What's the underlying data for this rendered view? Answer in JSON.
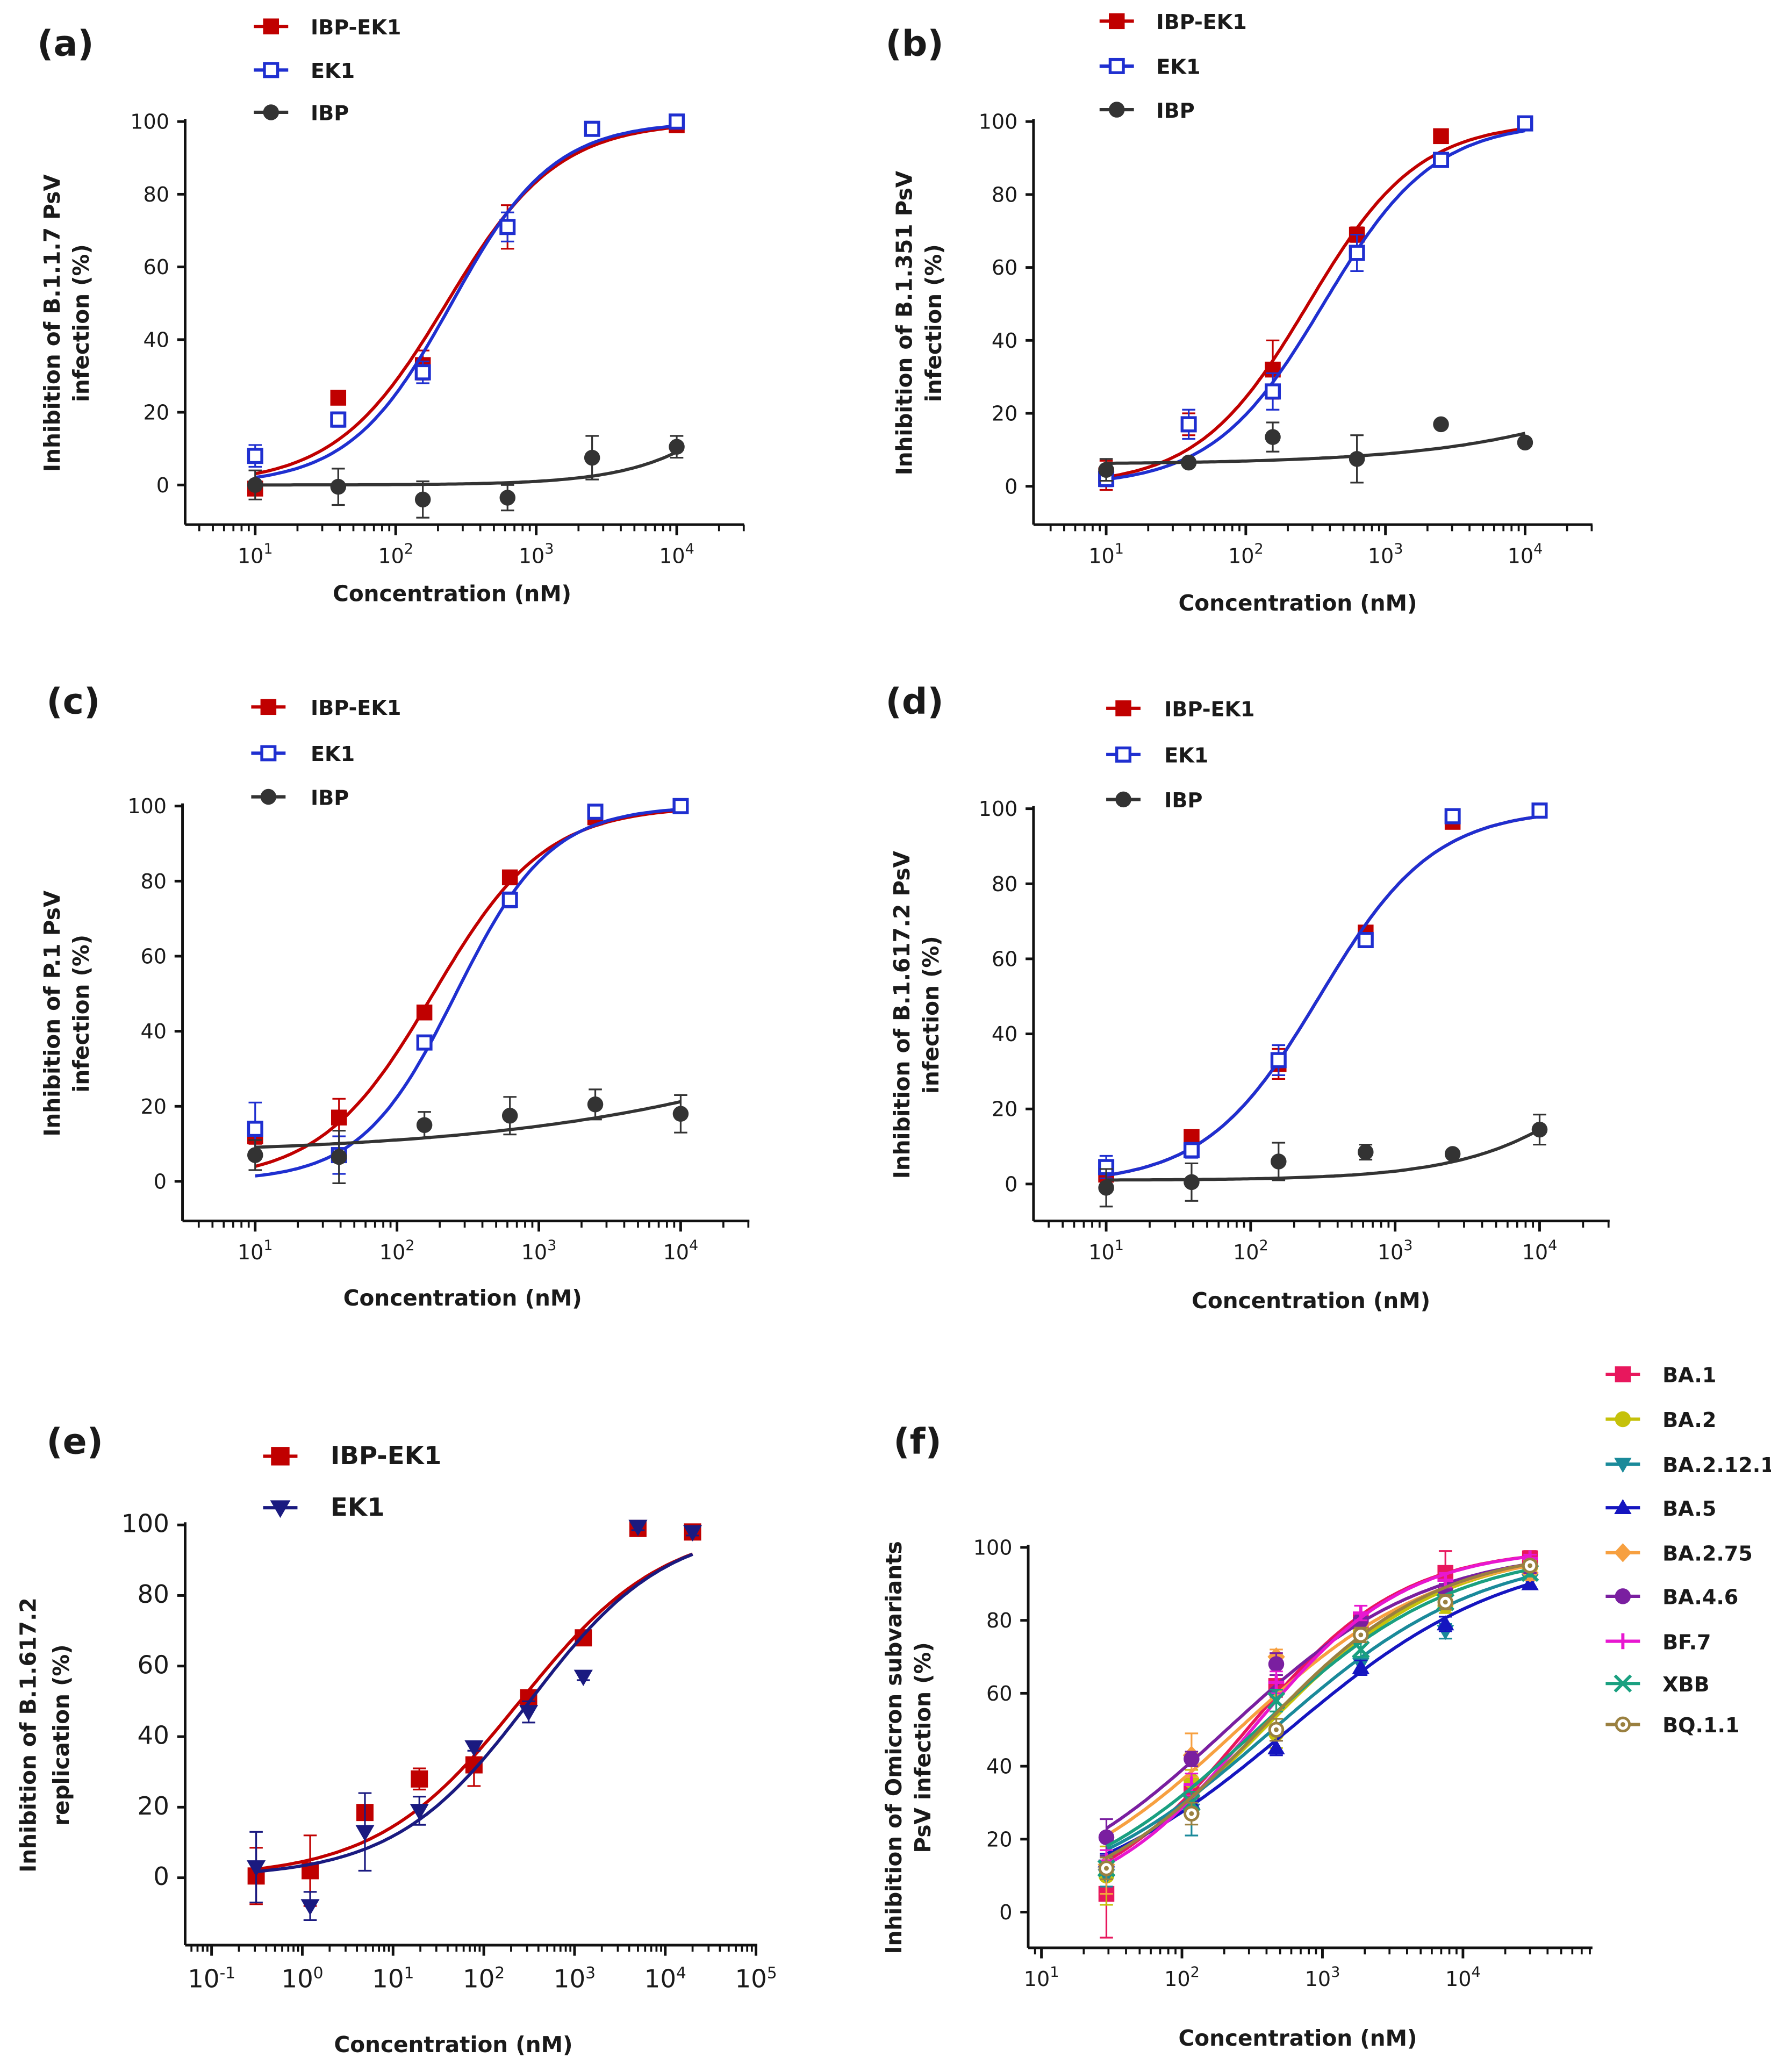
{
  "chart_data": [
    {
      "panel_label": "(a)",
      "type": "scatter",
      "xscale": "log",
      "xbase": "10",
      "xticks": [
        "1",
        "2",
        "3",
        "4"
      ],
      "xlabel": "Concentration (nM)",
      "ylabel": [
        "Inhibition of B.1.1.7 PsV",
        "infection (%)"
      ],
      "yticks": [
        "0",
        "20",
        "40",
        "60",
        "80",
        "100"
      ],
      "ylim": [
        -10,
        100
      ],
      "grid": false,
      "legend": "top-left",
      "x": [
        10,
        39,
        156,
        625,
        2500,
        10000
      ],
      "series": [
        {
          "name": "IBP-EK1",
          "color": "#c00000",
          "marker": "square",
          "values": [
            -1,
            24,
            33,
            71,
            98,
            99
          ],
          "err": [
            1,
            1,
            4,
            6,
            1,
            1
          ],
          "fit": {
            "bottom": 0,
            "top": 100,
            "ic50": 230,
            "hill": 1.1
          }
        },
        {
          "name": "EK1",
          "color": "#1f2fd0",
          "marker": "open-square",
          "values": [
            8,
            18,
            31,
            71,
            98,
            100
          ],
          "err": [
            3,
            2,
            3,
            4,
            1,
            1
          ],
          "fit": {
            "bottom": 0,
            "top": 100,
            "ic50": 250,
            "hill": 1.2
          }
        },
        {
          "name": "IBP",
          "color": "#333333",
          "marker": "circle",
          "values": [
            0,
            -0.5,
            -4,
            -3.5,
            7.5,
            10.5
          ],
          "err": [
            4,
            5,
            5,
            3.5,
            6,
            3
          ],
          "fit": {
            "bottom": 0,
            "top": 100,
            "ic50": 100000,
            "hill": 1
          }
        }
      ]
    },
    {
      "panel_label": "(b)",
      "type": "scatter",
      "xscale": "log",
      "xbase": "10",
      "xticks": [
        "1",
        "2",
        "3",
        "4"
      ],
      "xlabel": "Concentration (nM)",
      "ylabel": [
        "Inhibition of B.1.351 PsV",
        "infection (%)"
      ],
      "yticks": [
        "0",
        "20",
        "40",
        "60",
        "80",
        "100"
      ],
      "ylim": [
        -10,
        100
      ],
      "grid": false,
      "legend": "top-left",
      "x": [
        10,
        39,
        156,
        625,
        2500,
        10000
      ],
      "series": [
        {
          "name": "IBP-EK1",
          "color": "#c00000",
          "marker": "square",
          "values": [
            3,
            17,
            32,
            69,
            96,
            99.5
          ],
          "err": [
            4,
            3,
            8,
            2,
            1,
            1
          ],
          "fit": {
            "bottom": 0,
            "top": 100,
            "ic50": 280,
            "hill": 1.1
          }
        },
        {
          "name": "EK1",
          "color": "#1f2fd0",
          "marker": "open-square",
          "values": [
            2,
            17,
            26,
            64,
            89.5,
            99.5
          ],
          "err": [
            2,
            4,
            5,
            5,
            1,
            1
          ],
          "fit": {
            "bottom": 0,
            "top": 100,
            "ic50": 360,
            "hill": 1.1
          }
        },
        {
          "name": "IBP",
          "color": "#333333",
          "marker": "circle",
          "values": [
            4.5,
            6.5,
            13.5,
            7.5,
            17,
            12
          ],
          "err": [
            3,
            1,
            4,
            6.5,
            1,
            1
          ],
          "fit": {
            "bottom": 6,
            "top": 100,
            "ic50": 1000000,
            "hill": 0.5
          }
        }
      ]
    },
    {
      "panel_label": "(c)",
      "type": "scatter",
      "xscale": "log",
      "xbase": "10",
      "xticks": [
        "1",
        "2",
        "3",
        "4"
      ],
      "xlabel": "Concentration (nM)",
      "ylabel": [
        "Inhibition of P.1 PsV",
        "infection (%)"
      ],
      "yticks": [
        "0",
        "20",
        "40",
        "60",
        "80",
        "100"
      ],
      "ylim": [
        -10,
        100
      ],
      "grid": false,
      "legend": "top-left",
      "x": [
        10,
        39,
        156,
        625,
        2500,
        10000
      ],
      "series": [
        {
          "name": "IBP-EK1",
          "color": "#c00000",
          "marker": "square",
          "values": [
            12,
            17,
            45,
            81,
            97,
            100
          ],
          "err": [
            2,
            5,
            1,
            1,
            1,
            1
          ],
          "fit": {
            "bottom": 0,
            "top": 100,
            "ic50": 180,
            "hill": 1.1
          }
        },
        {
          "name": "EK1",
          "color": "#1f2fd0",
          "marker": "open-square",
          "values": [
            14,
            7,
            37,
            75,
            98.5,
            100
          ],
          "err": [
            7,
            5,
            1,
            2,
            1,
            1
          ],
          "fit": {
            "bottom": 0,
            "top": 100,
            "ic50": 260,
            "hill": 1.3
          }
        },
        {
          "name": "IBP",
          "color": "#333333",
          "marker": "circle",
          "values": [
            7,
            6.5,
            15,
            17.5,
            20.5,
            18
          ],
          "err": [
            4,
            7,
            3.5,
            5,
            4,
            5
          ],
          "fit": {
            "bottom": 7,
            "top": 100,
            "ic50": 3000000,
            "hill": 0.3
          }
        }
      ]
    },
    {
      "panel_label": "(d)",
      "type": "scatter",
      "xscale": "log",
      "xbase": "10",
      "xticks": [
        "1",
        "2",
        "3",
        "4"
      ],
      "xlabel": "Concentration (nM)",
      "ylabel": [
        "Inhibition of B.1.617.2 PsV",
        "infection (%)"
      ],
      "yticks": [
        "0",
        "20",
        "40",
        "60",
        "80",
        "100"
      ],
      "ylim": [
        -10,
        100
      ],
      "grid": false,
      "legend": "top-left",
      "x": [
        10,
        39,
        156,
        625,
        2500,
        10000
      ],
      "series": [
        {
          "name": "IBP-EK1",
          "color": "#c00000",
          "marker": "square",
          "values": [
            2.5,
            12.5,
            32,
            67,
            96.5,
            99.5
          ],
          "err": [
            1,
            1,
            4,
            1,
            1,
            1
          ],
          "fit": {
            "bottom": 0,
            "top": 100,
            "ic50": 300,
            "hill": 1.1
          }
        },
        {
          "name": "EK1",
          "color": "#1f2fd0",
          "marker": "open-square",
          "values": [
            4.5,
            9,
            33,
            65,
            98,
            99.5
          ],
          "err": [
            3,
            2,
            4,
            1,
            1,
            1
          ],
          "fit": {
            "bottom": 0,
            "top": 100,
            "ic50": 300,
            "hill": 1.1
          }
        },
        {
          "name": "IBP",
          "color": "#333333",
          "marker": "circle",
          "values": [
            -1,
            0.5,
            6,
            8.5,
            8,
            14.5
          ],
          "err": [
            5,
            5,
            5,
            2,
            1,
            4
          ],
          "fit": {
            "bottom": 1,
            "top": 100,
            "ic50": 100000,
            "hill": 0.8
          }
        }
      ]
    },
    {
      "panel_label": "(e)",
      "type": "scatter",
      "xscale": "log",
      "xbase": "10",
      "xticks": [
        "-1",
        "0",
        "1",
        "2",
        "3",
        "4",
        "5"
      ],
      "xlabel": "Concentration (nM)",
      "ylabel": [
        "Inhibition of B.1.617.2",
        "replication (%)"
      ],
      "yticks": [
        "0",
        "20",
        "40",
        "60",
        "80",
        "100"
      ],
      "ylim": [
        -20,
        100
      ],
      "grid": false,
      "legend": "top-left",
      "x": [
        0.31,
        1.22,
        4.9,
        19.5,
        78,
        312,
        1250,
        5000,
        20000
      ],
      "series": [
        {
          "name": "IBP-EK1",
          "color": "#c00000",
          "marker": "square",
          "values": [
            0.5,
            2,
            18.5,
            28,
            32,
            51,
            68,
            99,
            98
          ],
          "err": [
            8,
            10,
            2,
            3,
            6,
            2,
            2,
            1,
            1
          ],
          "fit": {
            "bottom": 0,
            "top": 100,
            "ic50": 250,
            "hill": 0.55
          }
        },
        {
          "name": "EK1",
          "color": "#1a1a80",
          "marker": "triangle-down",
          "values": [
            3,
            -8,
            13,
            19,
            37,
            47,
            57,
            99.5,
            98
          ],
          "err": [
            10,
            4,
            11,
            4,
            1,
            3,
            1,
            1,
            1
          ],
          "fit": {
            "bottom": 0,
            "top": 100,
            "ic50": 320,
            "hill": 0.58
          }
        }
      ]
    },
    {
      "panel_label": "(f)",
      "type": "scatter",
      "xscale": "log",
      "xbase": "10",
      "xticks": [
        "1",
        "2",
        "3",
        "4"
      ],
      "xlabel": "Concentration (nM)",
      "ylabel": [
        "Inhibition of Omicron subvariants",
        "PsV infection (%)"
      ],
      "yticks": [
        "0",
        "20",
        "40",
        "60",
        "80",
        "100"
      ],
      "ylim": [
        -10,
        100
      ],
      "grid": false,
      "legend": "right",
      "x": [
        29,
        117,
        469,
        1875,
        7500,
        30000
      ],
      "series": [
        {
          "name": "BA.1",
          "color": "#e8175d",
          "marker": "square",
          "values": [
            5,
            33,
            62,
            80,
            93,
            97
          ],
          "err": [
            12,
            3,
            3,
            2,
            6,
            2
          ],
          "fit": {
            "bottom": 0,
            "top": 100,
            "ic50": 289,
            "hill": 0.79
          }
        },
        {
          "name": "BA.2",
          "color": "#c5c10a",
          "marker": "circle",
          "values": [
            10,
            36,
            49,
            77,
            84,
            94.5
          ],
          "err": [
            8,
            3,
            4,
            3,
            2,
            2
          ],
          "fit": {
            "bottom": 0,
            "top": 100,
            "ic50": 377,
            "hill": 0.675
          }
        },
        {
          "name": "BA.2.12.1",
          "color": "#1a8a9a",
          "marker": "triangle-down",
          "values": [
            10,
            28,
            59,
            68,
            77,
            91
          ],
          "err": [
            3,
            7,
            4,
            2,
            2,
            2
          ],
          "fit": {
            "bottom": 0,
            "top": 100,
            "ic50": 443,
            "hill": 0.58
          }
        },
        {
          "name": "BA.5",
          "color": "#1515c0",
          "marker": "triangle-up",
          "values": [
            14,
            30,
            45,
            67,
            79,
            90
          ],
          "err": [
            2,
            3,
            2,
            2,
            2,
            1
          ],
          "fit": {
            "bottom": 0,
            "top": 100,
            "ic50": 575,
            "hill": 0.556
          }
        },
        {
          "name": "BA.2.75",
          "color": "#f7a040",
          "marker": "diamond",
          "values": [
            13,
            43,
            70,
            79,
            87,
            93
          ],
          "err": [
            8,
            6,
            2,
            2,
            2,
            2
          ],
          "fit": {
            "bottom": 0,
            "top": 100,
            "ic50": 250,
            "hill": 0.615
          }
        },
        {
          "name": "BA.4.6",
          "color": "#7a1fa0",
          "marker": "hexagon",
          "values": [
            20.5,
            42,
            68,
            80,
            88,
            95
          ],
          "err": [
            5,
            2,
            3,
            2,
            2,
            2
          ],
          "fit": {
            "bottom": 0,
            "top": 100,
            "ic50": 208,
            "hill": 0.614
          }
        },
        {
          "name": "BF.7",
          "color": "#e817d0",
          "marker": "plus",
          "values": [
            14,
            35,
            63,
            82,
            91,
            97
          ],
          "err": [
            3,
            3,
            3,
            2,
            2,
            1
          ],
          "fit": {
            "bottom": 0,
            "top": 100,
            "ic50": 313,
            "hill": 0.8
          }
        },
        {
          "name": "XBB",
          "color": "#1aa080",
          "marker": "x",
          "values": [
            12,
            30,
            58,
            72,
            85,
            93
          ],
          "err": [
            3,
            3,
            3,
            2,
            2,
            1
          ],
          "fit": {
            "bottom": 0,
            "top": 100,
            "ic50": 342,
            "hill": 0.614
          }
        },
        {
          "name": "BQ.1.1",
          "color": "#9a8040",
          "marker": "open-circle-dot",
          "values": [
            12,
            27,
            50,
            76,
            85,
            95
          ],
          "err": [
            3,
            3,
            3,
            2,
            2,
            1
          ],
          "fit": {
            "bottom": 0,
            "top": 100,
            "ic50": 360,
            "hill": 0.69
          }
        }
      ]
    }
  ]
}
